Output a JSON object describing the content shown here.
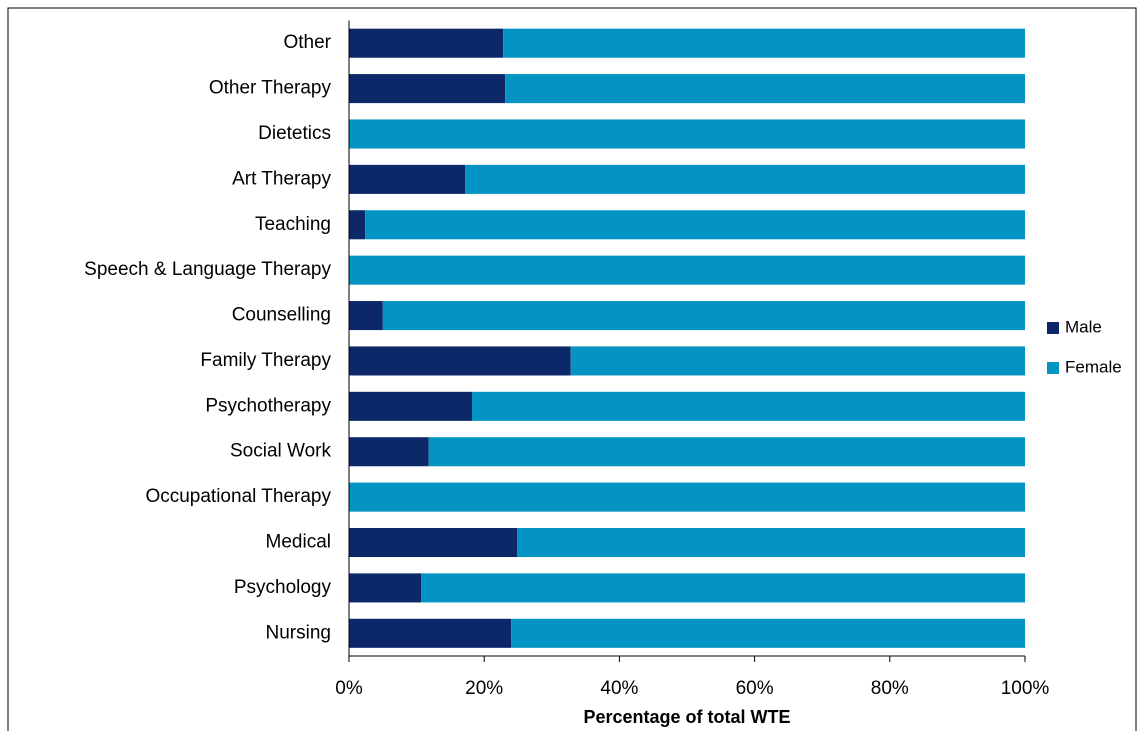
{
  "chart_data": {
    "type": "stacked-barh",
    "categories": [
      "Other",
      "Other Therapy",
      "Dietetics",
      "Art Therapy",
      "Teaching",
      "Speech & Language Therapy",
      "Counselling",
      "Family Therapy",
      "Psychotherapy",
      "Social Work",
      "Occupational Therapy",
      "Medical",
      "Psychology",
      "Nursing"
    ],
    "series": [
      {
        "name": "Male",
        "color": "#0c2868",
        "values": [
          22.8,
          23.1,
          0,
          17.2,
          2.4,
          0,
          5.0,
          32.8,
          18.2,
          11.8,
          0,
          24.9,
          10.7,
          24.0
        ]
      },
      {
        "name": "Female",
        "color": "#0394c4",
        "values": [
          77.2,
          76.9,
          100,
          82.8,
          97.6,
          100,
          95.0,
          67.2,
          81.8,
          88.2,
          100,
          75.1,
          89.3,
          76.0
        ]
      }
    ],
    "xlabel": "Percentage of total WTE",
    "xlim": [
      0,
      100
    ],
    "xticks": [
      {
        "value": 0,
        "label": "0%"
      },
      {
        "value": 20,
        "label": "20%"
      },
      {
        "value": 40,
        "label": "40%"
      },
      {
        "value": 60,
        "label": "60%"
      },
      {
        "value": 80,
        "label": "80%"
      },
      {
        "value": 100,
        "label": "100%"
      }
    ],
    "legend": "right"
  }
}
